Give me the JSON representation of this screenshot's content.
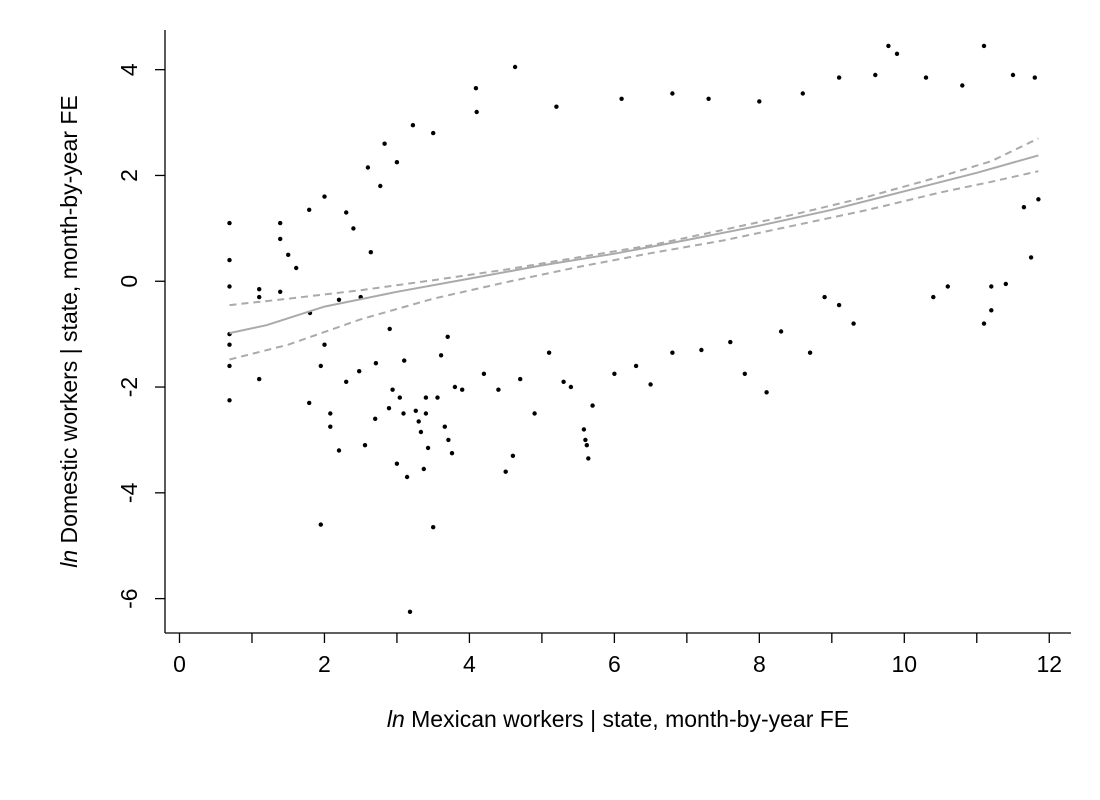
{
  "chart_data": {
    "type": "scatter",
    "title": "",
    "xlabel": {
      "prefix": "ln",
      "text": " Mexican workers | state, month-by-year FE"
    },
    "ylabel": {
      "prefix": "ln",
      "text": " Domestic workers | state, month-by-year FE"
    },
    "xlim": [
      -0.2,
      12.3
    ],
    "ylim": [
      -6.65,
      4.75
    ],
    "xticks": [
      0,
      2,
      4,
      6,
      8,
      10,
      12
    ],
    "xminor": [
      1,
      3,
      5,
      7,
      9,
      11
    ],
    "yticks": [
      -6,
      -4,
      -2,
      0,
      2,
      4
    ],
    "xtick_labels": [
      "0",
      "2",
      "4",
      "6",
      "8",
      "10",
      "12"
    ],
    "ytick_labels": [
      "-6",
      "-4",
      "-2",
      "0",
      "2",
      "4"
    ],
    "grid": false,
    "legend": "none",
    "colors": {
      "points": "#000000",
      "fit": "#aaaaaa",
      "ci": "#aaaaaa",
      "axis": "#000000"
    },
    "series": [
      {
        "kind": "points",
        "points": [
          [
            0.69,
            1.1
          ],
          [
            0.69,
            0.4
          ],
          [
            0.69,
            -0.1
          ],
          [
            0.69,
            -1.2
          ],
          [
            0.69,
            -1.6
          ],
          [
            0.69,
            -2.25
          ],
          [
            0.69,
            -1.0
          ],
          [
            1.1,
            -0.15
          ],
          [
            1.1,
            -0.3
          ],
          [
            1.1,
            -1.85
          ],
          [
            1.39,
            1.1
          ],
          [
            1.39,
            0.8
          ],
          [
            1.39,
            -0.2
          ],
          [
            1.61,
            0.25
          ],
          [
            1.79,
            1.35
          ],
          [
            1.79,
            -2.3
          ],
          [
            1.95,
            -4.6
          ],
          [
            1.95,
            -1.6
          ],
          [
            2.08,
            -2.5
          ],
          [
            2.08,
            -2.75
          ],
          [
            2.2,
            -3.2
          ],
          [
            2.3,
            1.3
          ],
          [
            2.4,
            1.0
          ],
          [
            2.48,
            -1.7
          ],
          [
            2.56,
            -3.1
          ],
          [
            2.64,
            0.55
          ],
          [
            2.71,
            -1.55
          ],
          [
            2.77,
            1.8
          ],
          [
            2.83,
            2.6
          ],
          [
            2.89,
            -2.4
          ],
          [
            2.94,
            -2.05
          ],
          [
            3.0,
            -3.45
          ],
          [
            3.04,
            -2.2
          ],
          [
            3.09,
            -2.5
          ],
          [
            3.14,
            -3.7
          ],
          [
            3.18,
            -6.25
          ],
          [
            3.22,
            2.95
          ],
          [
            3.26,
            -2.45
          ],
          [
            3.3,
            -2.65
          ],
          [
            3.33,
            -2.85
          ],
          [
            3.37,
            -3.55
          ],
          [
            3.4,
            -2.5
          ],
          [
            3.43,
            -3.15
          ],
          [
            3.5,
            -4.65
          ],
          [
            3.56,
            -2.2
          ],
          [
            3.61,
            -1.4
          ],
          [
            3.66,
            -2.75
          ],
          [
            3.71,
            -3.0
          ],
          [
            3.76,
            -3.25
          ],
          [
            3.8,
            -2.0
          ],
          [
            4.09,
            3.65
          ],
          [
            4.63,
            4.05
          ],
          [
            4.5,
            -3.6
          ],
          [
            4.6,
            -3.3
          ],
          [
            5.58,
            -2.8
          ],
          [
            5.6,
            -3.0
          ],
          [
            5.62,
            -3.1
          ],
          [
            5.64,
            -3.35
          ],
          [
            9.78,
            4.45
          ],
          [
            9.9,
            4.3
          ],
          [
            11.1,
            4.45
          ],
          [
            11.5,
            3.9
          ],
          [
            11.8,
            3.85
          ],
          [
            11.85,
            1.55
          ],
          [
            11.75,
            0.45
          ],
          [
            11.65,
            1.4
          ],
          [
            11.1,
            -0.8
          ],
          [
            11.4,
            -0.05
          ],
          [
            11.2,
            -0.55
          ],
          [
            10.4,
            -0.3
          ],
          [
            9.3,
            -0.8
          ],
          [
            8.1,
            -2.1
          ],
          [
            7.8,
            -1.75
          ],
          [
            8.9,
            -0.3
          ],
          [
            6.5,
            -1.95
          ],
          [
            5.7,
            -2.35
          ],
          [
            5.4,
            -2.0
          ],
          [
            2.5,
            -0.3
          ],
          [
            2.2,
            -0.35
          ],
          [
            2.0,
            -1.2
          ],
          [
            1.8,
            -0.6
          ],
          [
            1.5,
            0.5
          ],
          [
            2.0,
            1.6
          ],
          [
            2.3,
            -1.9
          ],
          [
            2.7,
            -2.6
          ],
          [
            2.9,
            -0.9
          ],
          [
            3.1,
            -1.5
          ],
          [
            3.4,
            -2.2
          ],
          [
            3.7,
            -1.05
          ],
          [
            3.9,
            -2.05
          ],
          [
            4.2,
            -1.75
          ],
          [
            4.4,
            -2.05
          ],
          [
            4.7,
            -1.85
          ],
          [
            4.9,
            -2.5
          ],
          [
            5.1,
            -1.35
          ],
          [
            5.3,
            -1.9
          ],
          [
            6.0,
            -1.75
          ],
          [
            6.3,
            -1.6
          ],
          [
            6.8,
            -1.35
          ],
          [
            7.2,
            -1.3
          ],
          [
            7.6,
            -1.15
          ],
          [
            8.3,
            -0.95
          ],
          [
            8.7,
            -1.35
          ],
          [
            9.1,
            -0.45
          ],
          [
            10.6,
            -0.1
          ],
          [
            11.2,
            -0.1
          ],
          [
            10.8,
            3.7
          ],
          [
            10.3,
            3.85
          ],
          [
            9.6,
            3.9
          ],
          [
            9.1,
            3.85
          ],
          [
            8.6,
            3.55
          ],
          [
            8.0,
            3.4
          ],
          [
            7.3,
            3.45
          ],
          [
            6.8,
            3.55
          ],
          [
            6.1,
            3.45
          ],
          [
            5.2,
            3.3
          ],
          [
            4.1,
            3.2
          ],
          [
            3.5,
            2.8
          ],
          [
            3.0,
            2.25
          ],
          [
            2.6,
            2.15
          ]
        ]
      },
      {
        "kind": "line",
        "points": [
          [
            0.69,
            -0.98
          ],
          [
            1.2,
            -0.83
          ],
          [
            2.0,
            -0.48
          ],
          [
            3.0,
            -0.2
          ],
          [
            4.0,
            0.05
          ],
          [
            5.0,
            0.3
          ],
          [
            6.0,
            0.52
          ],
          [
            7.0,
            0.78
          ],
          [
            8.0,
            1.05
          ],
          [
            9.0,
            1.35
          ],
          [
            10.0,
            1.7
          ],
          [
            11.0,
            2.05
          ],
          [
            11.85,
            2.38
          ]
        ]
      },
      {
        "kind": "dashed",
        "points": [
          [
            0.69,
            -0.45
          ],
          [
            1.5,
            -0.33
          ],
          [
            2.5,
            -0.17
          ],
          [
            3.5,
            0.02
          ],
          [
            4.5,
            0.22
          ],
          [
            5.5,
            0.45
          ],
          [
            6.5,
            0.68
          ],
          [
            7.5,
            0.97
          ],
          [
            8.5,
            1.27
          ],
          [
            9.5,
            1.6
          ],
          [
            10.5,
            1.98
          ],
          [
            11.2,
            2.27
          ],
          [
            11.85,
            2.7
          ]
        ]
      },
      {
        "kind": "dashed",
        "points": [
          [
            0.69,
            -1.48
          ],
          [
            1.5,
            -1.2
          ],
          [
            2.5,
            -0.72
          ],
          [
            3.5,
            -0.33
          ],
          [
            4.5,
            -0.02
          ],
          [
            5.5,
            0.27
          ],
          [
            6.5,
            0.53
          ],
          [
            7.5,
            0.77
          ],
          [
            8.5,
            1.06
          ],
          [
            9.5,
            1.35
          ],
          [
            10.5,
            1.68
          ],
          [
            11.2,
            1.88
          ],
          [
            11.85,
            2.08
          ]
        ]
      }
    ]
  }
}
